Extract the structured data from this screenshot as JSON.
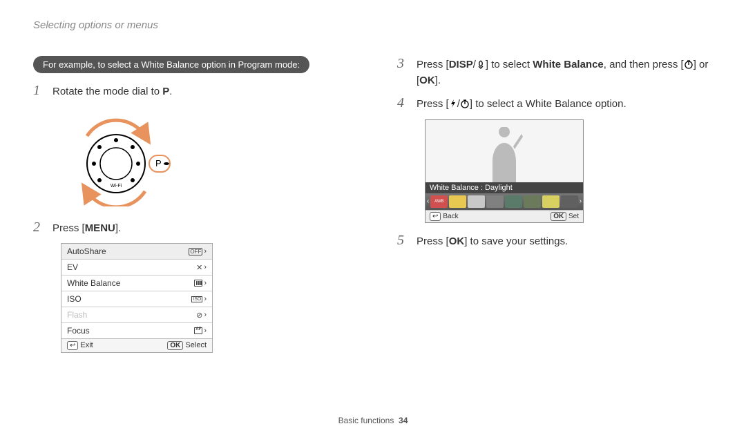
{
  "header": "Selecting options or menus",
  "pill": "For example, to select a White Balance option in Program mode:",
  "steps": {
    "s1_num": "1",
    "s1_text_a": "Rotate the mode dial to ",
    "s1_text_b": ".",
    "s1_mode": "P",
    "s2_num": "2",
    "s2_text_a": "Press [",
    "s2_label": "MENU",
    "s2_text_b": "].",
    "s3_num": "3",
    "s3_text_a": "Press [",
    "s3_label1": "DISP",
    "s3_text_b": "/",
    "s3_text_c": "] to select ",
    "s3_bold": "White Balance",
    "s3_text_d": ", and then press [",
    "s3_text_e": "] or [",
    "s3_label2": "OK",
    "s3_text_f": "].",
    "s4_num": "4",
    "s4_text_a": "Press [",
    "s4_text_b": "/",
    "s4_text_c": "] to select a White Balance option.",
    "s5_num": "5",
    "s5_text_a": "Press [",
    "s5_label": "OK",
    "s5_text_b": "] to save your settings."
  },
  "dial": {
    "mode_label": "P",
    "wifi_label": "Wi-Fi",
    "arrow_color": "#e8935e",
    "highlight_color": "#e8935e"
  },
  "menu": {
    "rows": [
      {
        "label": "AutoShare",
        "icon": "off",
        "disabled": false,
        "first": true
      },
      {
        "label": "EV",
        "icon": "x",
        "disabled": false
      },
      {
        "label": "White Balance",
        "icon": "bars",
        "disabled": false
      },
      {
        "label": "ISO",
        "icon": "iso",
        "disabled": false
      },
      {
        "label": "Flash",
        "icon": "flash",
        "disabled": true
      },
      {
        "label": "Focus",
        "icon": "af",
        "disabled": false
      }
    ],
    "footer_left_icon": "↩",
    "footer_left": "Exit",
    "footer_right_icon": "OK",
    "footer_right": "Select"
  },
  "lcd": {
    "wb_label": "White Balance : Daylight",
    "items": [
      {
        "bg": "#d05050",
        "txt": "AWB"
      },
      {
        "bg": "#e8c850"
      },
      {
        "bg": "#c8c8c8"
      },
      {
        "bg": "#808080"
      },
      {
        "bg": "#5a7a6a"
      },
      {
        "bg": "#6a7a5a"
      },
      {
        "bg": "#d8d060"
      },
      {
        "bg": "#606060"
      }
    ],
    "footer_left_icon": "↩",
    "footer_left": "Back",
    "footer_right_icon": "OK",
    "footer_right": "Set"
  },
  "footer": {
    "section": "Basic functions",
    "page": "34"
  }
}
